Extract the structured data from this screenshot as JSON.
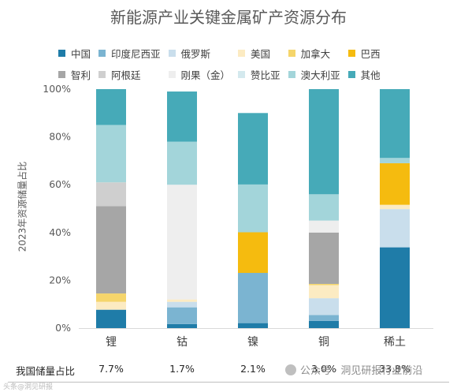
{
  "chart_data": {
    "type": "bar",
    "stacked": true,
    "title": "新能源产业关键金属矿产资源分布",
    "ylabel": "2023年资源储量占比",
    "ylim": [
      0,
      100
    ],
    "yticks": [
      "0%",
      "20%",
      "40%",
      "60%",
      "80%",
      "100%"
    ],
    "categories": [
      "锂",
      "钴",
      "镍",
      "铜",
      "稀土"
    ],
    "series": [
      {
        "name": "中国",
        "color": "#1F7CA8",
        "values": [
          7.7,
          1.7,
          2.1,
          3.0,
          33.8
        ]
      },
      {
        "name": "印度尼西亚",
        "color": "#7BB4D1",
        "values": [
          0.0,
          7.0,
          21.0,
          2.5,
          0.0
        ]
      },
      {
        "name": "俄罗斯",
        "color": "#C9DEEC",
        "values": [
          0.0,
          2.3,
          0.0,
          7.0,
          16.0
        ]
      },
      {
        "name": "美国",
        "color": "#FCEBC2",
        "values": [
          3.3,
          1.0,
          0.0,
          5.5,
          1.8
        ]
      },
      {
        "name": "加拿大",
        "color": "#F5D56B",
        "values": [
          3.5,
          0.0,
          0.0,
          0.5,
          0.0
        ]
      },
      {
        "name": "巴西",
        "color": "#F5BB0F",
        "values": [
          0.0,
          0.0,
          17.0,
          0.0,
          17.4
        ]
      },
      {
        "name": "智利",
        "color": "#A6A6A6",
        "values": [
          36.5,
          0.0,
          0.0,
          21.5,
          0.0
        ]
      },
      {
        "name": "阿根廷",
        "color": "#CFCFCF",
        "values": [
          10.0,
          0.0,
          0.0,
          0.0,
          0.0
        ]
      },
      {
        "name": "刚果（金）",
        "color": "#EEEEEE",
        "values": [
          0.0,
          48.0,
          0.0,
          5.0,
          0.0
        ]
      },
      {
        "name": "赞比亚",
        "color": "#D4E9EE",
        "values": [
          0.0,
          0.0,
          0.0,
          0.0,
          0.0
        ]
      },
      {
        "name": "澳大利亚",
        "color": "#A3D5DA",
        "values": [
          24.0,
          18.0,
          20.0,
          11.0,
          2.2
        ]
      },
      {
        "name": "其他",
        "color": "#46AAB8",
        "values": [
          15.0,
          21.0,
          29.9,
          44.0,
          28.8
        ]
      }
    ],
    "legend_position": "top",
    "grid": false,
    "bottom_row": {
      "label": "我国储量占比",
      "values": [
        "7.7%",
        "1.7%",
        "2.1%",
        "3.0%",
        "33.8%"
      ]
    }
  },
  "watermark": "公众号 · 洞见研报行业前沿",
  "footer_mark": "头条@洞见研报"
}
